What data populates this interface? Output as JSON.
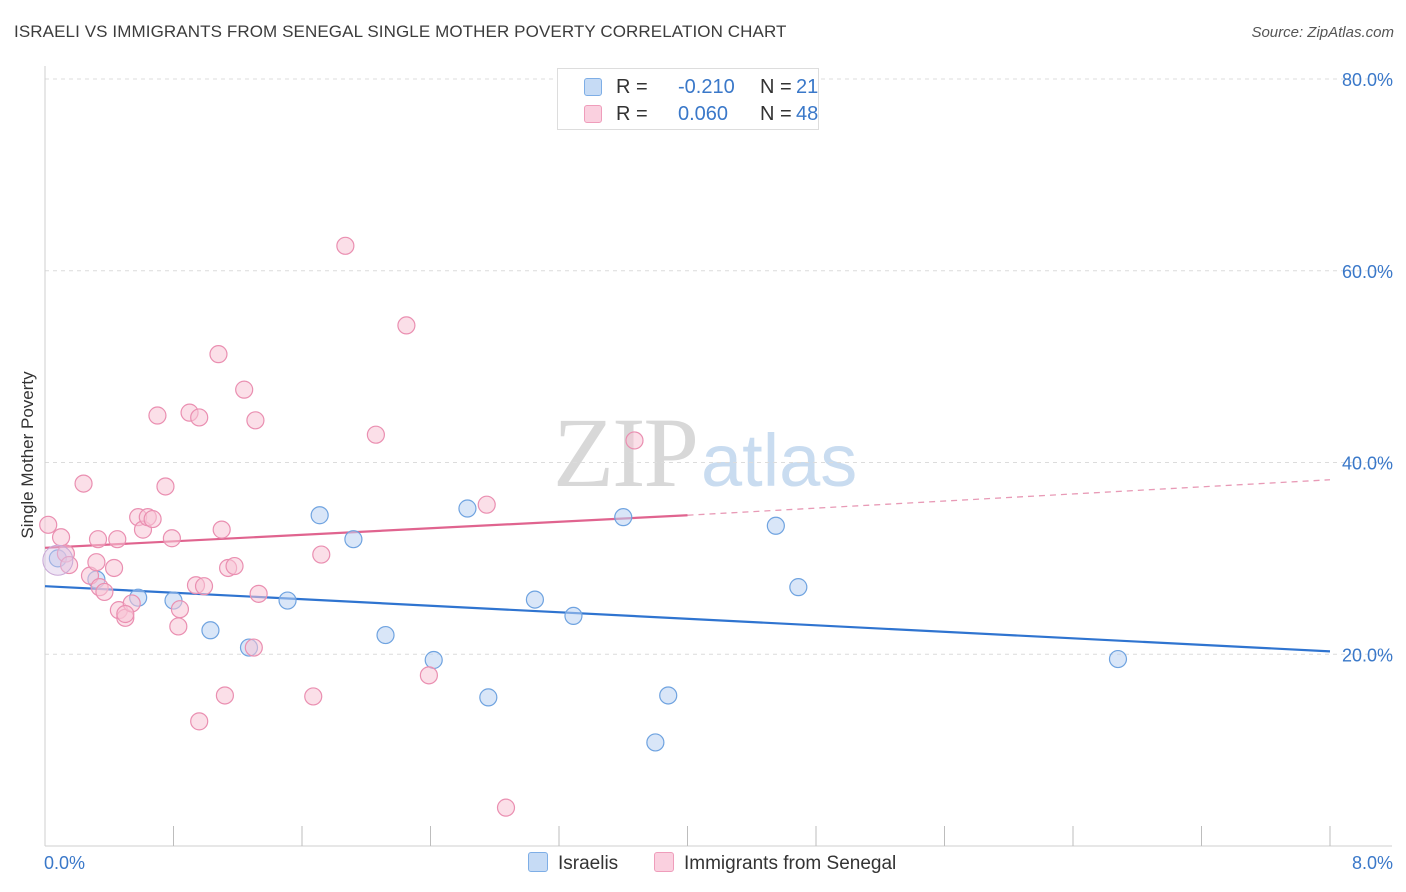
{
  "header": {
    "title": "ISRAELI VS IMMIGRANTS FROM SENEGAL SINGLE MOTHER POVERTY CORRELATION CHART",
    "source": "Source: ZipAtlas.com"
  },
  "watermark": {
    "zip": "ZIP",
    "atlas": "atlas"
  },
  "legend_top": {
    "rows": [
      {
        "label": "R =",
        "r_value": "-0.210",
        "n_label": "N =",
        "n_value": "21",
        "color": "#9dc0ec"
      },
      {
        "label": "R =",
        "r_value": "0.060",
        "n_label": "N =",
        "n_value": "48",
        "color": "#f5aac4"
      }
    ]
  },
  "legend_bottom": {
    "items": [
      {
        "label": "Israelis",
        "color": "#9dc0ec"
      },
      {
        "label": "Immigrants from Senegal",
        "color": "#f5aac4"
      }
    ]
  },
  "chart_data": {
    "type": "scatter",
    "title": "ISRAELI VS IMMIGRANTS FROM SENEGAL SINGLE MOTHER POVERTY CORRELATION CHART",
    "xlabel": "",
    "ylabel": "Single Mother Poverty",
    "xlim": [
      0,
      8
    ],
    "ylim": [
      0,
      80
    ],
    "x_tick_labels": [
      "0.0%",
      "8.0%"
    ],
    "y_ticks": [
      20,
      40,
      60,
      80
    ],
    "y_tick_labels": [
      "20.0%",
      "40.0%",
      "60.0%",
      "80.0%"
    ],
    "grid": true,
    "legend": "top-center",
    "series": [
      {
        "name": "Israelis",
        "color": "#6fa3e0",
        "fill": "#b9d2f2",
        "points": [
          [
            0.08,
            30.0
          ],
          [
            0.32,
            27.8
          ],
          [
            0.58,
            25.9
          ],
          [
            0.8,
            25.6
          ],
          [
            1.03,
            22.5
          ],
          [
            1.27,
            20.7
          ],
          [
            1.51,
            25.6
          ],
          [
            1.71,
            34.5
          ],
          [
            1.92,
            32.0
          ],
          [
            2.12,
            22.0
          ],
          [
            2.42,
            19.4
          ],
          [
            2.63,
            35.2
          ],
          [
            2.76,
            15.5
          ],
          [
            3.05,
            25.7
          ],
          [
            3.29,
            24.0
          ],
          [
            3.6,
            34.3
          ],
          [
            3.8,
            10.8
          ],
          [
            3.88,
            15.7
          ],
          [
            4.55,
            33.4
          ],
          [
            4.69,
            27.0
          ],
          [
            6.68,
            19.5
          ]
        ],
        "trend": {
          "x": [
            0.0,
            8.0
          ],
          "y": [
            27.1,
            20.3
          ]
        }
      },
      {
        "name": "Immigrants from Senegal",
        "color": "#ea8fb1",
        "fill": "#f7c5d6",
        "points": [
          [
            0.02,
            33.5
          ],
          [
            0.1,
            32.2
          ],
          [
            0.13,
            30.5
          ],
          [
            0.15,
            29.3
          ],
          [
            0.24,
            37.8
          ],
          [
            0.28,
            28.2
          ],
          [
            0.32,
            29.6
          ],
          [
            0.33,
            32.0
          ],
          [
            0.34,
            27.0
          ],
          [
            0.37,
            26.5
          ],
          [
            0.43,
            29.0
          ],
          [
            0.45,
            32.0
          ],
          [
            0.46,
            24.6
          ],
          [
            0.5,
            23.8
          ],
          [
            0.54,
            25.3
          ],
          [
            0.58,
            34.3
          ],
          [
            0.61,
            33.0
          ],
          [
            0.64,
            34.3
          ],
          [
            0.67,
            34.1
          ],
          [
            0.7,
            44.9
          ],
          [
            0.75,
            37.5
          ],
          [
            0.79,
            32.1
          ],
          [
            0.83,
            22.9
          ],
          [
            0.84,
            24.7
          ],
          [
            0.9,
            45.2
          ],
          [
            0.94,
            27.2
          ],
          [
            0.96,
            44.7
          ],
          [
            0.99,
            27.1
          ],
          [
            0.96,
            13.0
          ],
          [
            1.08,
            51.3
          ],
          [
            1.1,
            33.0
          ],
          [
            1.12,
            15.7
          ],
          [
            1.14,
            29.0
          ],
          [
            1.18,
            29.2
          ],
          [
            1.24,
            47.6
          ],
          [
            1.3,
            20.7
          ],
          [
            1.31,
            44.4
          ],
          [
            1.33,
            26.3
          ],
          [
            1.67,
            15.6
          ],
          [
            1.72,
            30.4
          ],
          [
            1.87,
            62.6
          ],
          [
            2.06,
            42.9
          ],
          [
            2.25,
            54.3
          ],
          [
            2.39,
            17.8
          ],
          [
            2.75,
            35.6
          ],
          [
            2.87,
            4.0
          ],
          [
            3.67,
            42.3
          ],
          [
            0.5,
            24.2
          ]
        ],
        "trend": {
          "x": [
            0.0,
            4.0
          ],
          "y": [
            31.1,
            34.5
          ],
          "dashed_extension": {
            "x": [
              4.0,
              8.0
            ],
            "y": [
              34.5,
              38.2
            ]
          }
        }
      }
    ]
  }
}
